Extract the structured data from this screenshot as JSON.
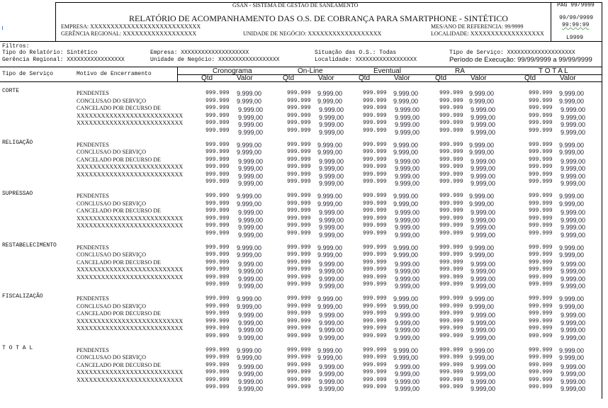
{
  "header": {
    "system": "GSAN - SISTEMA DE GESTAO DE SANEAMENTO",
    "title": "RELATÓRIO DE ACOMPANHAMENTO DAS O.S. DE COBRANÇA PARA SMARTPHONE - SINTÉTICO",
    "empresa": "EMPRESA: XXXXXXXXXXXXXXXXXXXXXXXXXXX",
    "gerencia": "GERÊNCIA REGIONAL: XXXXXXXXXXXXXXXXXX",
    "unidade": "UNIDADE DE NEGÓCIO: XXXXXXXXXXXXXXXXXX",
    "mes_ano": "MES/ANO DE REFERENCIA: 99/9999",
    "localidade": "LOCALIDADE: XXXXXXXXXXXXXXXXXX",
    "pag": "PAG 99/9999",
    "date": "99/99/9999",
    "time": "99:99:99",
    "code": "L9999"
  },
  "filters": {
    "title": "Filtros:",
    "tipo_relatorio": "Tipo do Relatório: Sintético",
    "empresa": "Empresa: XXXXXXXXXXXXXXXXXXXX",
    "situacao": "Situação das O.S.: Todas",
    "tipo_servico": "Tipo de Serviço: XXXXXXXXXXXXXXXXXXXX",
    "gerencia": "Gerência Regional: XXXXXXXXXXXXXXXXX",
    "unidade": "Unidade de Negócio: XXXXXXXXXXXXXXXXXX",
    "localidade": "Localidade: XXXXXXXXXXXXXXXXXX",
    "periodo": "Período de Execução: 99/99/9999 a 99/99/9999"
  },
  "columns": {
    "tipo": "Tipo de Serviço",
    "motivo": "Motivo de Encerramento",
    "groups": [
      "Cronograma",
      "On-Line",
      "Eventual",
      "RA",
      "T O T A L"
    ],
    "qtd": "Qtd",
    "valor": "Valor"
  },
  "motivos": [
    "PENDENTES",
    "CONCLUSAO DO SERVIÇO",
    "CANCELADO POR DECURSO DE",
    "XXXXXXXXXXXXXXXXXXXXXXXXXX",
    "XXXXXXXXXXXXXXXXXXXXXXXXXX"
  ],
  "sections": [
    {
      "name": "CORTE",
      "rows": [
        [
          "999.999",
          "9.999.00",
          "999.999",
          "9.999.00",
          "999.999",
          "9.999.00",
          "999.999",
          "9.999.00",
          "999.999",
          "9.999.00"
        ],
        [
          "999.999",
          "9.999,00",
          "999.999",
          "9.999,00",
          "999.999",
          "9.999,00",
          "999.999",
          "9.999,00",
          "999.999",
          "9.999,00"
        ],
        [
          "999.999",
          "9.999.00",
          "999.999",
          "9.999.00",
          "999.999",
          "9.999.00",
          "999.999",
          "9.999.00",
          "999.999",
          "9.999.00"
        ],
        [
          "999.999",
          "9.999,00",
          "999.999",
          "9.999,00",
          "999.999",
          "9.999,00",
          "999.999",
          "9.999,00",
          "999.999",
          "9.999,00"
        ],
        [
          "999.999",
          "9.999.00",
          "999.999",
          "9.999.00",
          "999.999",
          "9.999.00",
          "999.999",
          "9.999.00",
          "999.999",
          "9.999.00"
        ],
        [
          "999.999",
          "9.999,00",
          "999.999",
          "9.999,00",
          "999.999",
          "9.999,00",
          "999.999",
          "9.999,00",
          "999.999",
          "9.999,00"
        ]
      ]
    },
    {
      "name": "RELIGAÇÃO",
      "rows": [
        [
          "999.999",
          "9.999.00",
          "999.999",
          "9.999.00",
          "999.999",
          "9.999.00",
          "999.999",
          "9.999.00",
          "999.999",
          "9.999.00"
        ],
        [
          "999.999",
          "9.999,00",
          "999.999",
          "9.999,00",
          "999.999",
          "9.999,00",
          "999.999",
          "9.999,00",
          "999.999",
          "9.999,00"
        ],
        [
          "999.999",
          "9.999.00",
          "999.999",
          "9.999.00",
          "999.999",
          "9.999.00",
          "999.999",
          "9.999.00",
          "999.999",
          "9.999.00"
        ],
        [
          "999.999",
          "9.999,00",
          "999.999",
          "9.999,00",
          "999.999",
          "9.999,00",
          "999.999",
          "9.999,00",
          "999.999",
          "9.999,00"
        ],
        [
          "999.999",
          "9.999.00",
          "999.999",
          "9.999.00",
          "999.999",
          "9.999.00",
          "999.999",
          "9.999.00",
          "999.999",
          "9.999.00"
        ],
        [
          "999.999",
          "9.999,00",
          "999.999",
          "9.999,00",
          "999.999",
          "9.999,00",
          "999.999",
          "9.999,00",
          "999.999",
          "9.999,00"
        ]
      ]
    },
    {
      "name": "SUPRESSAO",
      "rows": [
        [
          "999.999",
          "9.999.00",
          "999.999",
          "9.999.00",
          "999.999",
          "9.999.00",
          "999.999",
          "9.999.00",
          "999.999",
          "9.999.00"
        ],
        [
          "999.999",
          "9.999,00",
          "999.999",
          "9.999,00",
          "999.999",
          "9.999,00",
          "999.999",
          "9.999,00",
          "999.999",
          "9.999,00"
        ],
        [
          "999.999",
          "9.999.00",
          "999.999",
          "9.999.00",
          "999.999",
          "9.999.00",
          "999.999",
          "9.999.00",
          "999.999",
          "9.999.00"
        ],
        [
          "999.999",
          "9.999,00",
          "999.999",
          "9.999,00",
          "999.999",
          "9.999,00",
          "999.999",
          "9.999,00",
          "999.999",
          "9.999,00"
        ],
        [
          "999.999",
          "9.999.00",
          "999.999",
          "9.999.00",
          "999.999",
          "9.999.00",
          "999.999",
          "9.999.00",
          "999.999",
          "9.999.00"
        ],
        [
          "999.999",
          "9.999,00",
          "999.999",
          "9.999,00",
          "999.999",
          "9.999,00",
          "999.999",
          "9.999,00",
          "999.999",
          "9.999,00"
        ]
      ]
    },
    {
      "name": "RESTABELECIMENTO",
      "rows": [
        [
          "999.999",
          "9.999.00",
          "999.999",
          "9.999.00",
          "999.999",
          "9.999.00",
          "999.999",
          "9.999.00",
          "999.999",
          "9.999.00"
        ],
        [
          "999.999",
          "9.999,00",
          "999.999",
          "9.999,00",
          "999.999",
          "9.999,00",
          "999.999",
          "9.999,00",
          "999.999",
          "9.999,00"
        ],
        [
          "999.999",
          "9.999.00",
          "999.999",
          "9.999.00",
          "999.999",
          "9.999.00",
          "999.999",
          "9.999.00",
          "999.999",
          "9.999.00"
        ],
        [
          "999.999",
          "9.999,00",
          "999.999",
          "9.999,00",
          "999.999",
          "9.999,00",
          "999.999",
          "9.999,00",
          "999.999",
          "9.999,00"
        ],
        [
          "999.999",
          "9.999.00",
          "999.999",
          "9.999.00",
          "999.999",
          "9.999.00",
          "999.999",
          "9.999.00",
          "999.999",
          "9.999.00"
        ],
        [
          "999.999",
          "9.999,00",
          "999.999",
          "9.999,00",
          "999.999",
          "9.999,00",
          "999.999",
          "9.999,00",
          "999.999",
          "9.999,00"
        ]
      ]
    },
    {
      "name": "FISCALIZAÇÃO",
      "rows": [
        [
          "999.999",
          "9.999.00",
          "999.999",
          "9.999.00",
          "999.999",
          "9.999.00",
          "999.999",
          "9.999.00",
          "999.999",
          "9.999.00"
        ],
        [
          "999.999",
          "9.999,00",
          "999.999",
          "9.999,00",
          "999.999",
          "9.999,00",
          "999.999",
          "9.999,00",
          "999.999",
          "9.999,00"
        ],
        [
          "999.999",
          "9.999.00",
          "999.999",
          "9.999.00",
          "999.999",
          "9.999.00",
          "999.999",
          "9.999.00",
          "999.999",
          "9.999.00"
        ],
        [
          "999.999",
          "9.999,00",
          "999.999",
          "9.999,00",
          "999.999",
          "9.999,00",
          "999.999",
          "9.999,00",
          "999.999",
          "9.999,00"
        ],
        [
          "999.999",
          "9.999.00",
          "999.999",
          "9.999.00",
          "999.999",
          "9.999.00",
          "999.999",
          "9.999.00",
          "999.999",
          "9.999.00"
        ],
        [
          "999.999",
          "9.999,00",
          "999.999",
          "9.999,00",
          "999.999",
          "9.999,00",
          "999.999",
          "9.999,00",
          "999.999",
          "9.999,00"
        ]
      ]
    },
    {
      "name": "T O T A L",
      "rows": [
        [
          "999.999",
          "9.999.00",
          "999.999",
          "9.999.00",
          "999.999",
          "9.999.00",
          "999.999",
          "9.999.00",
          "999.999",
          "9.999.00"
        ],
        [
          "999.999",
          "9.999,00",
          "999.999",
          "9.999,00",
          "999.999",
          "9.999,00",
          "999.999",
          "9.999,00",
          "999.999",
          "9.999,00"
        ],
        [
          "999.999",
          "9.999.00",
          "999.999",
          "9.999.00",
          "999.999",
          "9.999.00",
          "999.999",
          "9.999.00",
          "999.999",
          "9.999.00"
        ],
        [
          "999.999",
          "9.999,00",
          "999.999",
          "9.999,00",
          "999.999",
          "9.999,00",
          "999.999",
          "9.999,00",
          "999.999",
          "9.999,00"
        ],
        [
          "999.999",
          "9.999.00",
          "999.999",
          "9.999.00",
          "999.999",
          "9.999.00",
          "999.999",
          "9.999.00",
          "999.999",
          "9.999.00"
        ],
        [
          "999.999",
          "9.999,00",
          "999.999",
          "9.999,00",
          "999.999",
          "9.999,00",
          "999.999",
          "9.999,00",
          "999.999",
          "9.999,00"
        ]
      ]
    }
  ]
}
